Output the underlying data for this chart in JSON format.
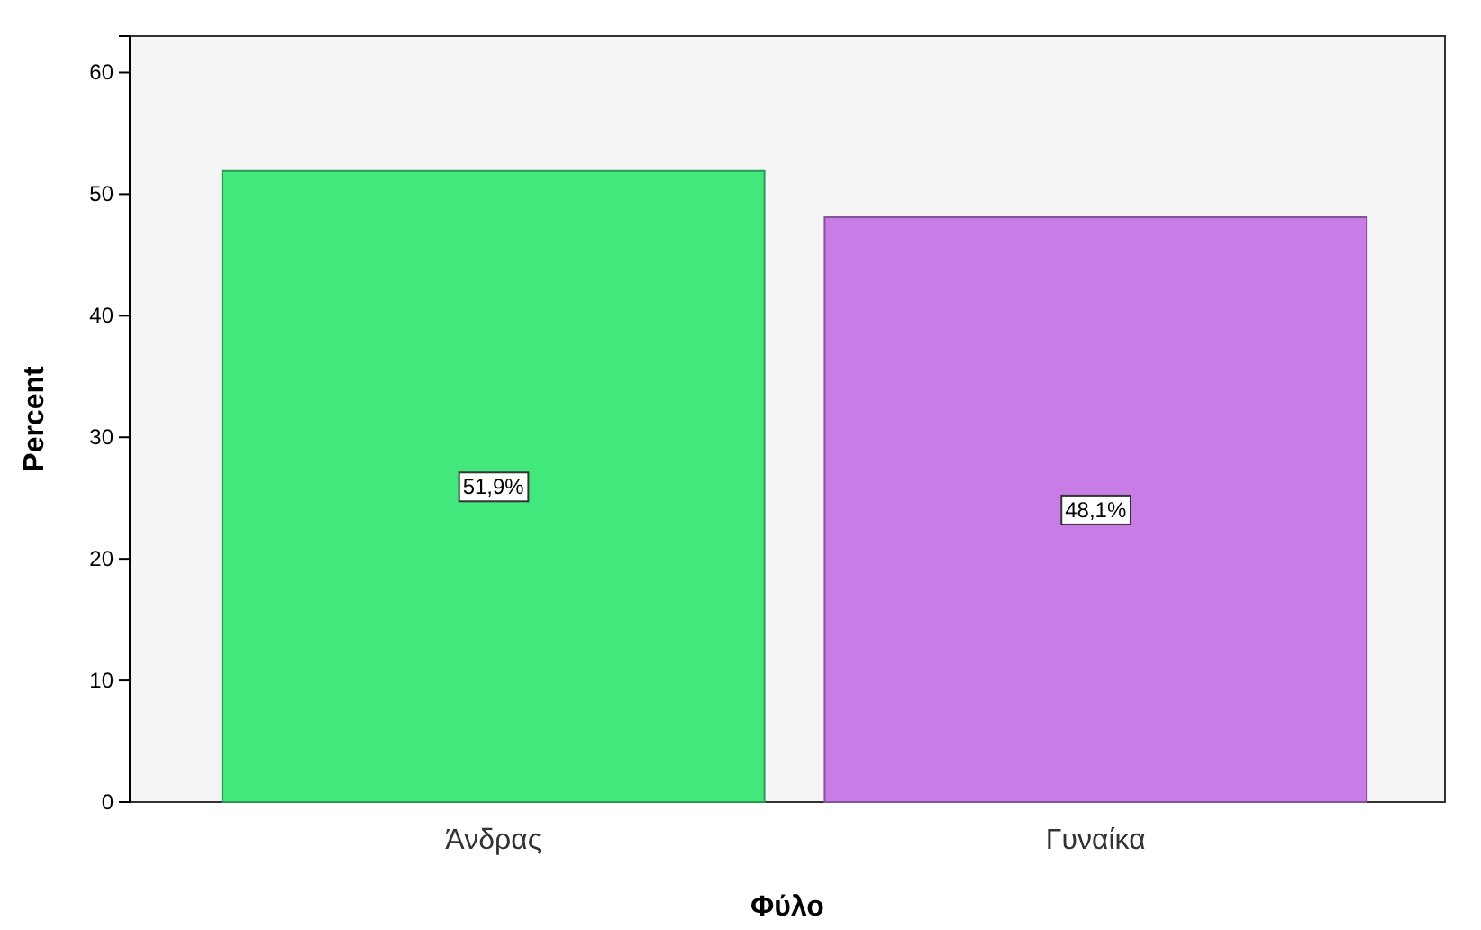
{
  "chart_data": {
    "type": "bar",
    "xlabel": "Φύλο",
    "ylabel": "Percent",
    "categories": [
      "Άνδρας",
      "Γυναίκα"
    ],
    "values": [
      51.9,
      48.1
    ],
    "colors": [
      "#42e87c",
      "#c87de6"
    ],
    "value_labels": [
      "51,9%",
      "48,1%"
    ],
    "ylim": [
      0,
      63
    ],
    "yticks": [
      0,
      10,
      20,
      30,
      40,
      50,
      60
    ],
    "grid": false
  }
}
